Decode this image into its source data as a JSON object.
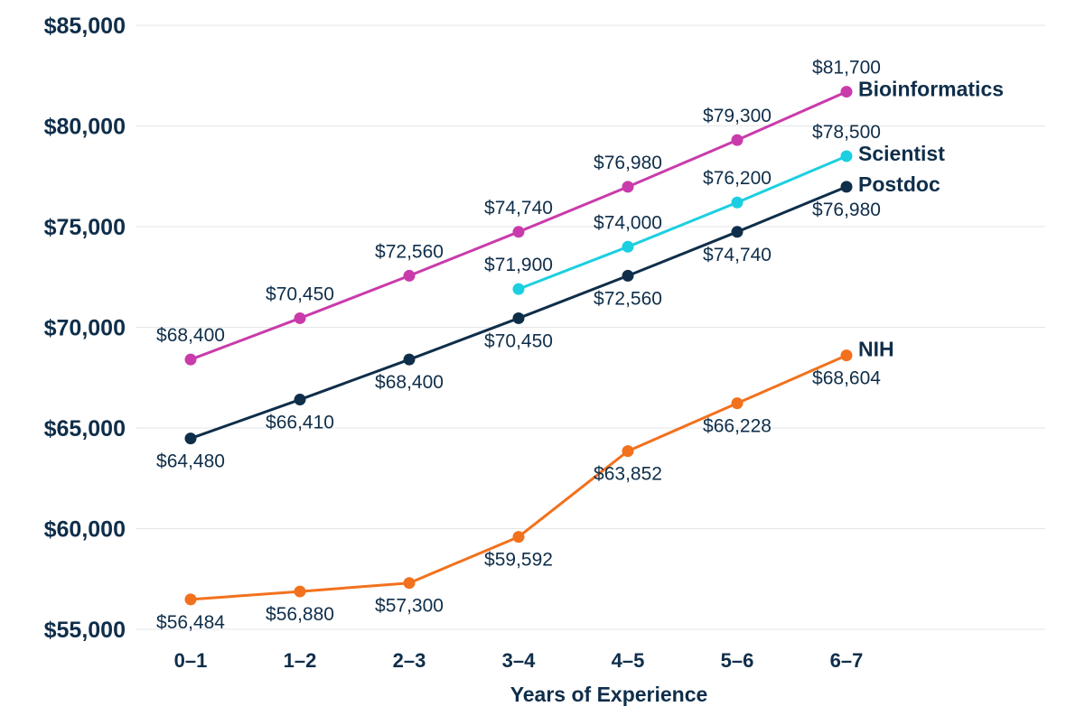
{
  "chart_data": {
    "type": "line",
    "title": "",
    "xlabel": "Years of Experience",
    "ylabel": "",
    "categories": [
      "0–1",
      "1–2",
      "2–3",
      "3–4",
      "4–5",
      "5–6",
      "6–7"
    ],
    "ylim": [
      55000,
      85000
    ],
    "yticks": [
      55000,
      60000,
      65000,
      70000,
      75000,
      80000,
      85000
    ],
    "ytick_labels": [
      "$55,000",
      "$60,000",
      "$65,000",
      "$70,000",
      "$75,000",
      "$80,000",
      "$85,000"
    ],
    "grid": "horizontal",
    "legend": "series labels at line ends (right)",
    "series": [
      {
        "name": "Bioinformatics",
        "color": "#c93bab",
        "values": [
          68400,
          70450,
          72560,
          74740,
          76980,
          79300,
          81700
        ],
        "labels": [
          "$68,400",
          "$70,450",
          "$72,560",
          "$74,740",
          "$76,980",
          "$79,300",
          "$81,700"
        ],
        "label_position": [
          "above",
          "above",
          "above",
          "above",
          "above",
          "above",
          "above"
        ]
      },
      {
        "name": "Scientist",
        "color": "#1ccfe0",
        "values": [
          null,
          null,
          null,
          71900,
          74000,
          76200,
          78500
        ],
        "labels": [
          "",
          "",
          "",
          "$71,900",
          "$74,000",
          "$76,200",
          "$78,500"
        ],
        "label_position": [
          "",
          "",
          "",
          "above",
          "above",
          "above",
          "above"
        ]
      },
      {
        "name": "Postdoc",
        "color": "#0f2e4a",
        "values": [
          64480,
          66410,
          68400,
          70450,
          72560,
          74740,
          76980
        ],
        "labels": [
          "$64,480",
          "$66,410",
          "$68,400",
          "$70,450",
          "$72,560",
          "$74,740",
          "$76,980"
        ],
        "label_position": [
          "below",
          "below",
          "below",
          "below",
          "below",
          "below",
          "below"
        ]
      },
      {
        "name": "NIH",
        "color": "#f2711d",
        "values": [
          56484,
          56880,
          57300,
          59592,
          63852,
          66228,
          68604
        ],
        "labels": [
          "$56,484",
          "$56,880",
          "$57,300",
          "$59,592",
          "$63,852",
          "$66,228",
          "$68,604"
        ],
        "label_position": [
          "below",
          "below",
          "below",
          "below",
          "below",
          "below",
          "below"
        ]
      }
    ]
  }
}
